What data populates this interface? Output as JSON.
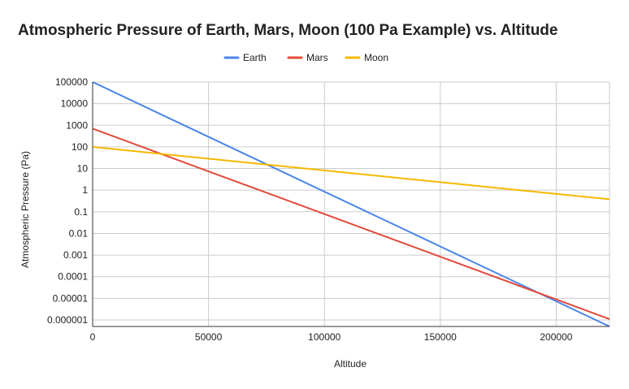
{
  "chart_data": {
    "type": "line",
    "title": "Atmospheric Pressure of Earth, Mars, Moon (100 Pa Example) vs. Altitude",
    "xlabel": "Altitude",
    "ylabel": "Atmospheric Pressure (Pa)",
    "x_scale": "linear",
    "y_scale": "log",
    "xlim": [
      0,
      223000
    ],
    "ylim": [
      5e-07,
      100000
    ],
    "x_ticks": [
      {
        "value": 0,
        "label": "0"
      },
      {
        "value": 50000,
        "label": "50000"
      },
      {
        "value": 100000,
        "label": "100000"
      },
      {
        "value": 150000,
        "label": "150000"
      },
      {
        "value": 200000,
        "label": "200000"
      }
    ],
    "y_ticks": [
      {
        "value": 100000,
        "label": "100000"
      },
      {
        "value": 10000,
        "label": "10000"
      },
      {
        "value": 1000,
        "label": "1000"
      },
      {
        "value": 100,
        "label": "100"
      },
      {
        "value": 10,
        "label": "10"
      },
      {
        "value": 1,
        "label": "1"
      },
      {
        "value": 0.1,
        "label": "0.1"
      },
      {
        "value": 0.01,
        "label": "0.01"
      },
      {
        "value": 0.001,
        "label": "0.001"
      },
      {
        "value": 0.0001,
        "label": "0.0001"
      },
      {
        "value": 1e-05,
        "label": "0.00001"
      },
      {
        "value": 1e-06,
        "label": "0.000001"
      }
    ],
    "grid": true,
    "legend_position": "top-center",
    "series": [
      {
        "name": "Earth",
        "color": "#4a86e8",
        "x": [
          0,
          223000
        ],
        "y": [
          100000,
          5e-07
        ]
      },
      {
        "name": "Mars",
        "color": "#e24a3a",
        "x": [
          0,
          223000
        ],
        "y": [
          700,
          1.1e-06
        ]
      },
      {
        "name": "Moon",
        "color": "#f5b800",
        "x": [
          0,
          223000
        ],
        "y": [
          100,
          0.38
        ]
      }
    ]
  }
}
